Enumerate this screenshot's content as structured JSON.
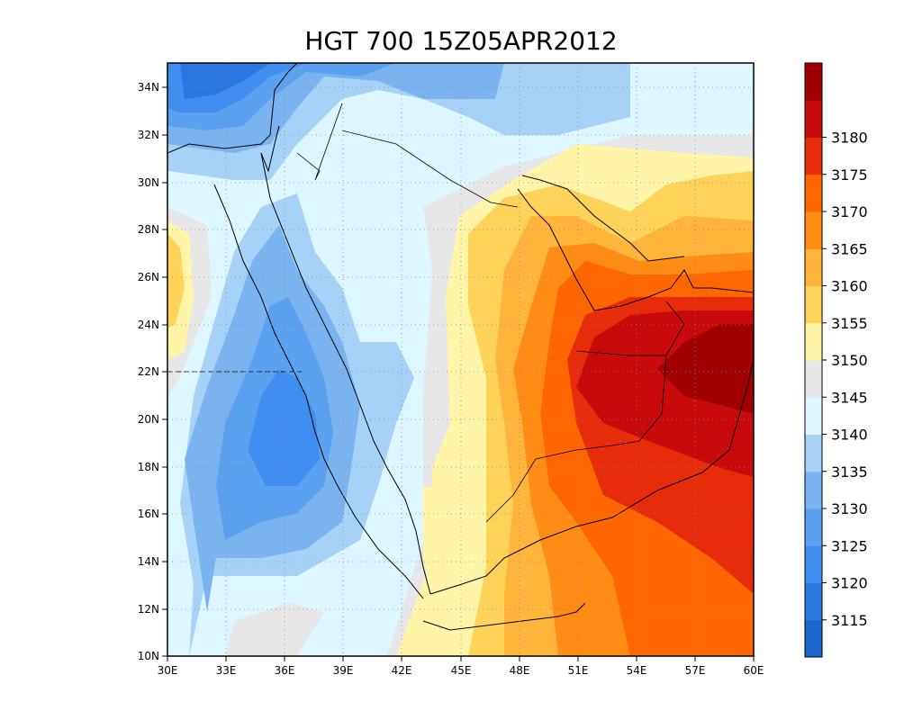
{
  "map": {
    "title": "HGT 700 15Z05APR2012",
    "lon_labels": [
      "30E",
      "33E",
      "36E",
      "39E",
      "42E",
      "45E",
      "48E",
      "51E",
      "54E",
      "57E",
      "60E"
    ],
    "lat_labels": [
      "10N",
      "12N",
      "14N",
      "16N",
      "18N",
      "20N",
      "22N",
      "24N",
      "26N",
      "28N",
      "30N",
      "32N",
      "34N"
    ],
    "lon_range": [
      30,
      60
    ],
    "lat_range": [
      10,
      35
    ],
    "grid_lines": true
  },
  "colorbar": {
    "labels": [
      "3115",
      "3120",
      "3125",
      "3130",
      "3135",
      "3140",
      "3145",
      "3150",
      "3155",
      "3160",
      "3165",
      "3170",
      "3175",
      "3180"
    ],
    "colors": [
      "#1a66cc",
      "#2a78e0",
      "#3f8ef0",
      "#5aa2f0",
      "#7ab4f0",
      "#a6d2f8",
      "#def6ff",
      "#e6e6e6",
      "#fff5a8",
      "#ffd25a",
      "#ffb43c",
      "#ff8c14",
      "#ff6600",
      "#e62c0a",
      "#c80a0a",
      "#a00000"
    ]
  }
}
